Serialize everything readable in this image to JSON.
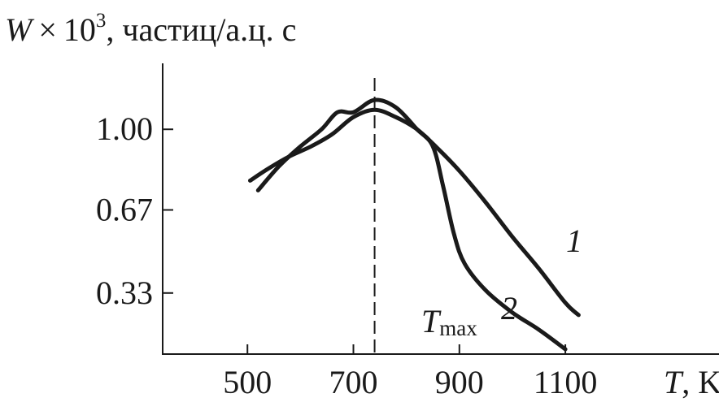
{
  "chart_data": {
    "type": "line",
    "ylabel_prefix": "W",
    "ylabel_mult": "×",
    "ylabel_power_base": "10",
    "ylabel_power_exp": "3",
    "ylabel_units": ", частиц/а.ц. с",
    "xlabel_var": "T",
    "xlabel_units": ", K",
    "x_ticks": [
      "500",
      "700",
      "900",
      "1100"
    ],
    "y_ticks": [
      "0.33",
      "0.67",
      "1.00"
    ],
    "xlim": [
      340,
      1390
    ],
    "ylim": [
      0.08,
      1.27
    ],
    "tmax": {
      "x": 740,
      "label_main": "T",
      "label_sub": "max"
    },
    "series": [
      {
        "name": "1",
        "x": [
          505,
          540,
          580,
          620,
          660,
          700,
          740,
          780,
          820,
          860,
          900,
          950,
          1000,
          1050,
          1100,
          1125
        ],
        "y": [
          0.79,
          0.84,
          0.89,
          0.93,
          0.98,
          1.05,
          1.08,
          1.05,
          1.0,
          0.92,
          0.83,
          0.7,
          0.56,
          0.43,
          0.29,
          0.24
        ]
      },
      {
        "name": "2",
        "x": [
          520,
          560,
          600,
          640,
          670,
          700,
          740,
          780,
          820,
          850,
          870,
          890,
          910,
          950,
          1000,
          1050,
          1100
        ],
        "y": [
          0.75,
          0.85,
          0.93,
          1.0,
          1.07,
          1.07,
          1.12,
          1.09,
          1.0,
          0.93,
          0.76,
          0.57,
          0.45,
          0.34,
          0.25,
          0.18,
          0.1
        ]
      }
    ]
  }
}
